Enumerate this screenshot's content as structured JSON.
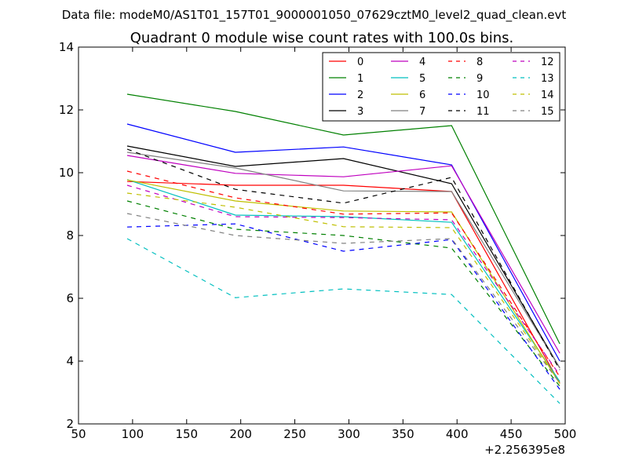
{
  "chart_data": {
    "type": "line",
    "suptitle": "Data file: modeM0/AS1T01_157T01_9000001050_07629cztM0_level2_quad_clean.evt",
    "title": "Quadrant 0 module wise count rates with 100.0s bins.",
    "xlabel": "",
    "ylabel": "",
    "x_offset_label": "+2.256395e8",
    "xlim": [
      50,
      500
    ],
    "ylim": [
      2,
      14
    ],
    "xticks": [
      "50",
      "100",
      "150",
      "200",
      "250",
      "300",
      "350",
      "400",
      "450",
      "500"
    ],
    "yticks": [
      "2",
      "4",
      "6",
      "8",
      "10",
      "12",
      "14"
    ],
    "legend_position": "top-right",
    "x": [
      95,
      195,
      295,
      395,
      495
    ],
    "series": [
      {
        "name": "0",
        "color": "#ff0000",
        "dashed": false,
        "values": [
          9.72,
          9.6,
          9.6,
          9.4,
          3.3
        ]
      },
      {
        "name": "1",
        "color": "#008000",
        "dashed": false,
        "values": [
          12.5,
          11.95,
          11.2,
          11.5,
          4.55
        ]
      },
      {
        "name": "2",
        "color": "#0000ff",
        "dashed": false,
        "values": [
          11.55,
          10.65,
          10.82,
          10.25,
          4.0
        ]
      },
      {
        "name": "3",
        "color": "#000000",
        "dashed": false,
        "values": [
          10.85,
          10.2,
          10.45,
          9.65,
          3.78
        ]
      },
      {
        "name": "4",
        "color": "#bf00bf",
        "dashed": false,
        "values": [
          10.55,
          9.98,
          9.87,
          10.22,
          4.25
        ]
      },
      {
        "name": "5",
        "color": "#00bfbf",
        "dashed": false,
        "values": [
          9.78,
          8.65,
          8.6,
          8.42,
          3.35
        ]
      },
      {
        "name": "6",
        "color": "#bfbf00",
        "dashed": false,
        "values": [
          9.77,
          9.1,
          8.78,
          8.75,
          3.28
        ]
      },
      {
        "name": "7",
        "color": "#808080",
        "dashed": false,
        "values": [
          10.65,
          10.15,
          9.42,
          9.4,
          3.78
        ]
      },
      {
        "name": "8",
        "color": "#ff0000",
        "dashed": true,
        "values": [
          10.05,
          9.2,
          8.68,
          8.72,
          3.5
        ]
      },
      {
        "name": "9",
        "color": "#008000",
        "dashed": true,
        "values": [
          9.1,
          8.2,
          8.0,
          7.6,
          3.2
        ]
      },
      {
        "name": "10",
        "color": "#0000ff",
        "dashed": true,
        "values": [
          8.27,
          8.37,
          7.5,
          7.87,
          3.1
        ]
      },
      {
        "name": "11",
        "color": "#000000",
        "dashed": true,
        "values": [
          10.75,
          9.47,
          9.03,
          9.85,
          3.72
        ]
      },
      {
        "name": "12",
        "color": "#bf00bf",
        "dashed": true,
        "values": [
          9.6,
          8.6,
          8.57,
          8.5,
          3.55
        ]
      },
      {
        "name": "13",
        "color": "#00bfbf",
        "dashed": true,
        "values": [
          7.9,
          6.02,
          6.3,
          6.12,
          2.65
        ]
      },
      {
        "name": "14",
        "color": "#bfbf00",
        "dashed": true,
        "values": [
          9.35,
          8.9,
          8.28,
          8.25,
          3.3
        ]
      },
      {
        "name": "15",
        "color": "#808080",
        "dashed": true,
        "values": [
          8.7,
          8.0,
          7.75,
          7.9,
          3.3
        ]
      }
    ]
  }
}
